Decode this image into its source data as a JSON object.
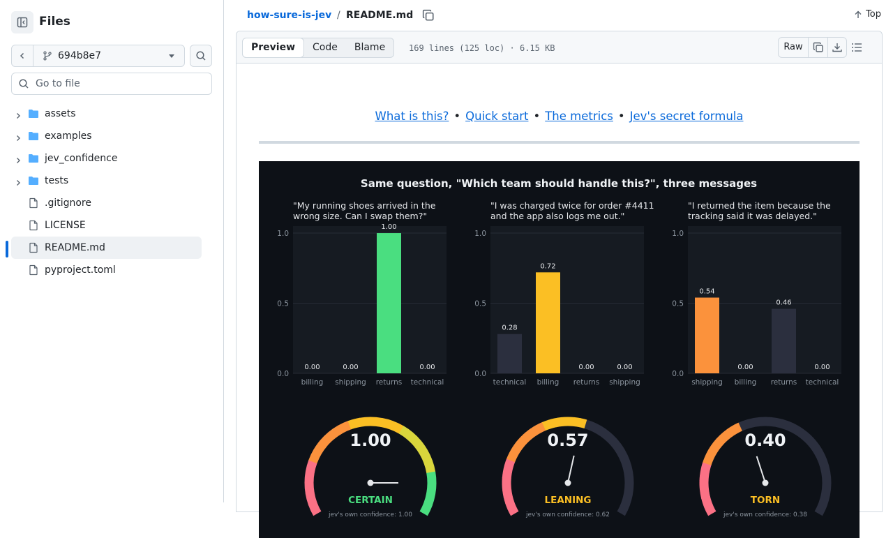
{
  "sidebar": {
    "title": "Files",
    "branch": "694b8e7",
    "goto_placeholder": "Go to file",
    "items": [
      {
        "label": "assets",
        "type": "folder"
      },
      {
        "label": "examples",
        "type": "folder"
      },
      {
        "label": "jev_confidence",
        "type": "folder"
      },
      {
        "label": "tests",
        "type": "folder"
      },
      {
        "label": ".gitignore",
        "type": "file"
      },
      {
        "label": "LICENSE",
        "type": "file"
      },
      {
        "label": "README.md",
        "type": "file",
        "active": true
      },
      {
        "label": "pyproject.toml",
        "type": "file"
      }
    ]
  },
  "header": {
    "repo": "how-sure-is-jev",
    "separator": "/",
    "file": "README.md",
    "top_label": "Top"
  },
  "file_header": {
    "tabs": [
      "Preview",
      "Code",
      "Blame"
    ],
    "active_tab": "Preview",
    "meta": "169 lines (125 loc) · 6.15 KB",
    "raw_label": "Raw"
  },
  "readme": {
    "links": [
      "What is this?",
      "Quick start",
      "The metrics",
      "Jev's secret formula"
    ],
    "link_separator": "•"
  },
  "colors": {
    "accent": "#0969da",
    "fig_bg": "#0d1117",
    "panel_bg": "#161b22",
    "dim_bar": "#2b2f3e",
    "green": "#4ade80",
    "yellow": "#fbbf24",
    "orange": "#fb923c"
  },
  "chart_data": {
    "title": "Same question, \"Which team should handle this?\", three messages",
    "panels": [
      {
        "type": "bar",
        "message": [
          "\"My running shoes arrived in the",
          "wrong size. Can I swap them?\""
        ],
        "categories": [
          "billing",
          "shipping",
          "returns",
          "technical"
        ],
        "values": [
          0.0,
          0.0,
          1.0,
          0.0
        ],
        "value_labels": [
          "0.00",
          "0.00",
          "1.00",
          "0.00"
        ],
        "highlight_color": "#4ade80",
        "ylim": [
          0,
          1.05
        ],
        "yticks": [
          "0.0",
          "0.5",
          "1.0"
        ],
        "gauge": {
          "value": 1.0,
          "label": "1.00",
          "verdict": "CERTAIN",
          "verdict_color": "#4ade80",
          "footnote": "jev's own confidence: 1.00"
        }
      },
      {
        "type": "bar",
        "message": [
          "\"I was charged twice for order #4411",
          "and the app also logs me out.\""
        ],
        "categories": [
          "technical",
          "billing",
          "returns",
          "shipping"
        ],
        "values": [
          0.28,
          0.72,
          0.0,
          0.0
        ],
        "value_labels": [
          "0.28",
          "0.72",
          "0.00",
          "0.00"
        ],
        "highlight_color": "#fbbf24",
        "ylim": [
          0,
          1.05
        ],
        "yticks": [
          "0.0",
          "0.5",
          "1.0"
        ],
        "gauge": {
          "value": 0.57,
          "label": "0.57",
          "verdict": "LEANING",
          "verdict_color": "#fbbf24",
          "footnote": "jev's own confidence: 0.62"
        }
      },
      {
        "type": "bar",
        "message": [
          "\"I returned the item because the",
          "tracking said it was delayed.\""
        ],
        "categories": [
          "shipping",
          "billing",
          "returns",
          "technical"
        ],
        "values": [
          0.54,
          0.0,
          0.46,
          0.0
        ],
        "value_labels": [
          "0.54",
          "0.00",
          "0.46",
          "0.00"
        ],
        "highlight_color": "#fb923c",
        "ylim": [
          0,
          1.05
        ],
        "yticks": [
          "0.0",
          "0.5",
          "1.0"
        ],
        "gauge": {
          "value": 0.4,
          "label": "0.40",
          "verdict": "TORN",
          "verdict_color": "#fbbf24",
          "footnote": "jev's own confidence: 0.38"
        }
      }
    ]
  }
}
